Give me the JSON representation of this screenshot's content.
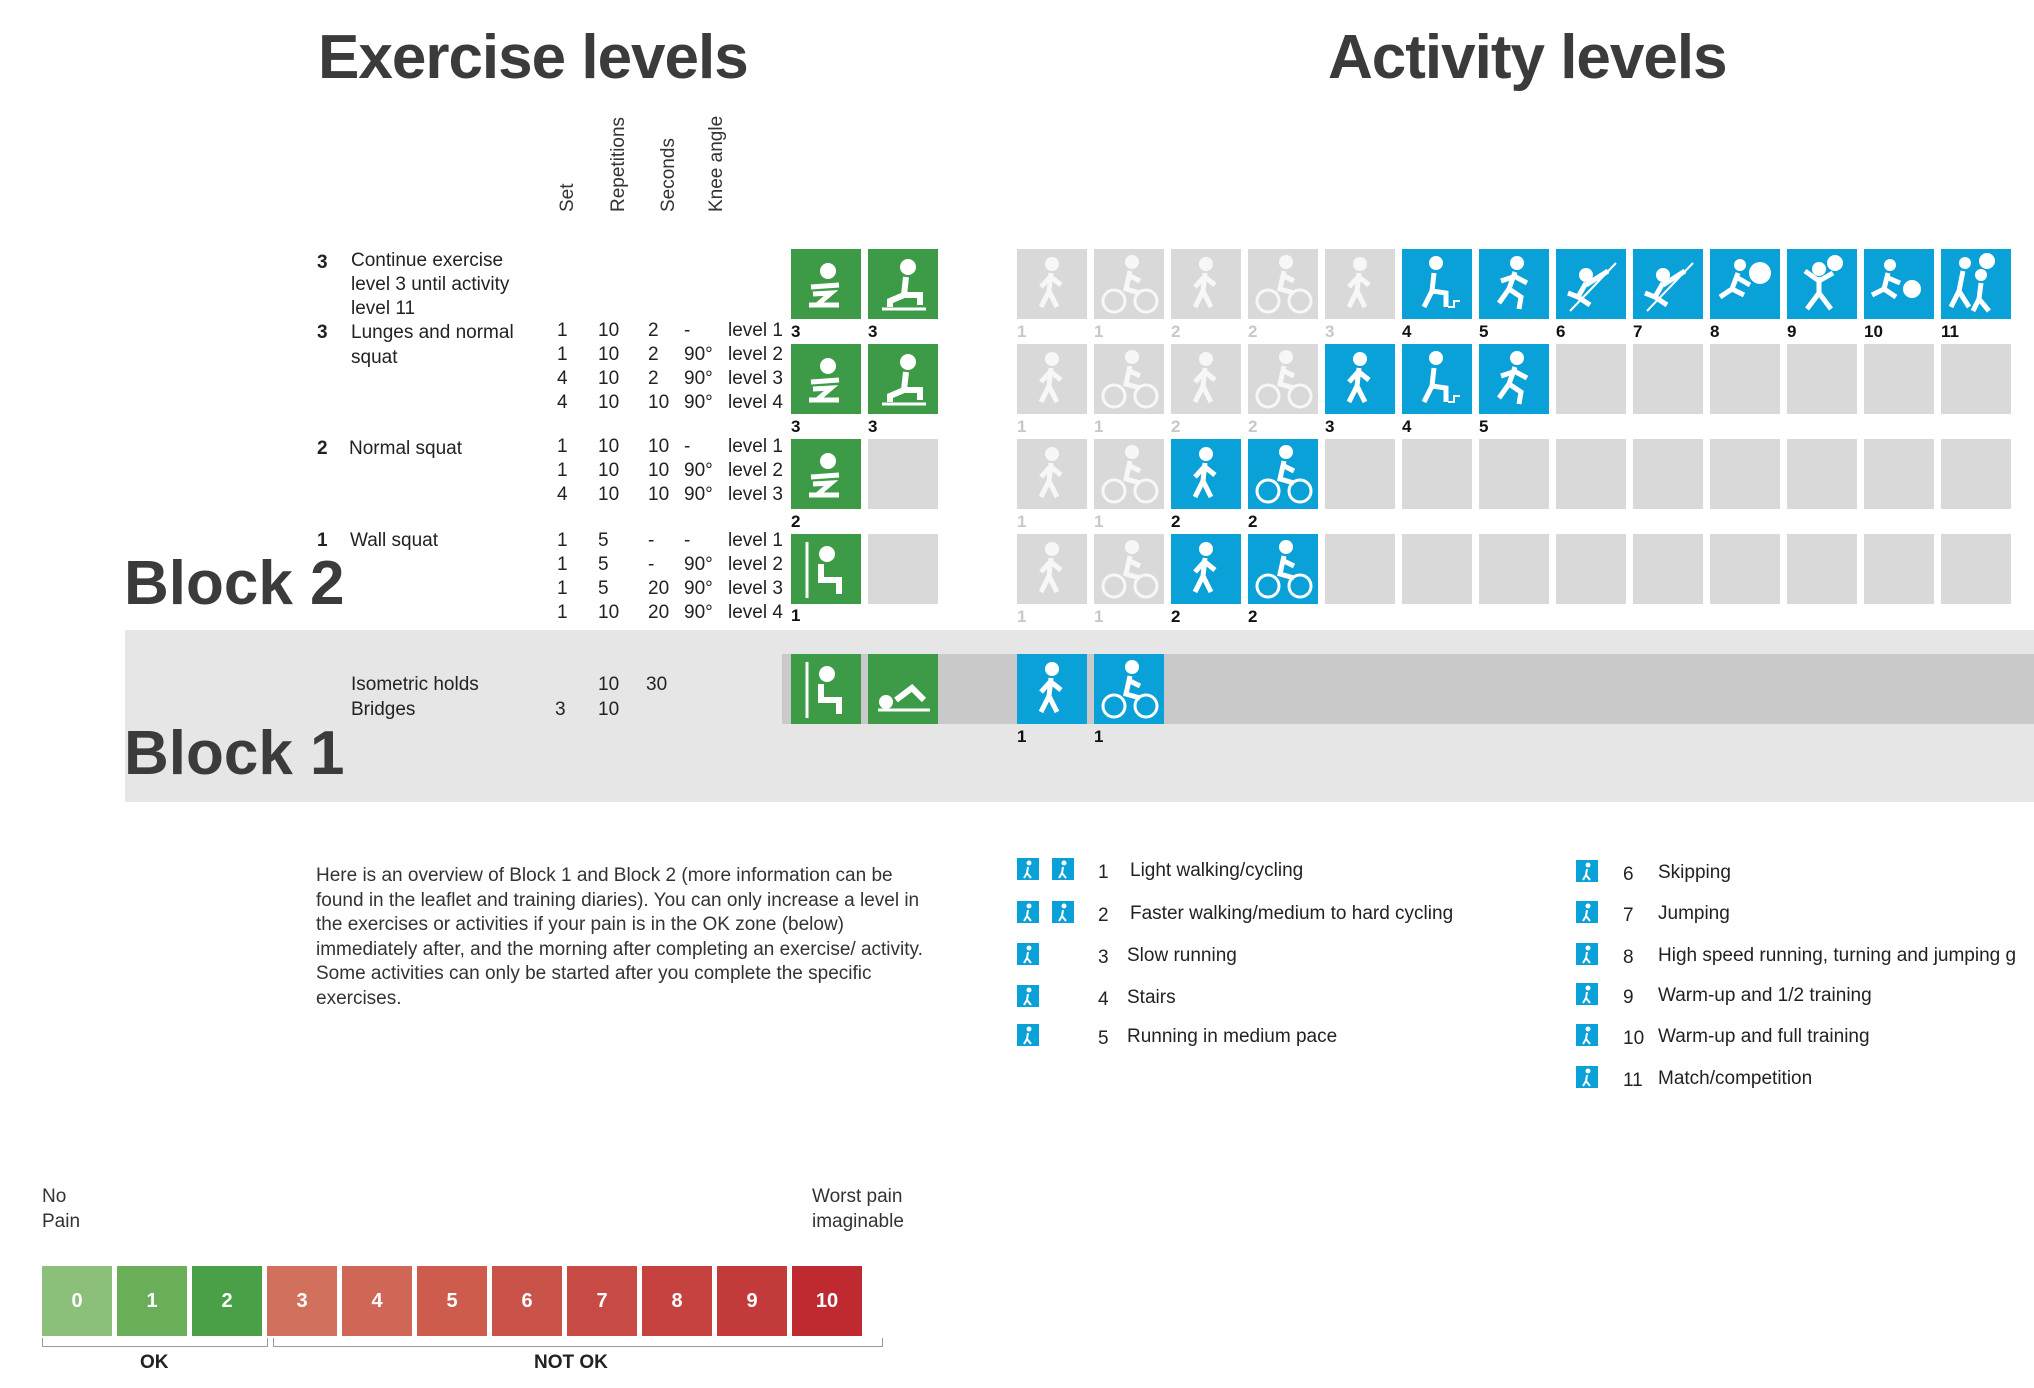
{
  "titles": {
    "exercise": "Exercise levels",
    "activity": "Activity levels",
    "block2": "Block 2",
    "block1": "Block 1"
  },
  "headers": {
    "set": "Set",
    "repetitions": "Repetitions",
    "seconds": "Seconds",
    "knee_angle": "Knee angle"
  },
  "exercises": [
    {
      "level": "3",
      "name": "Continue exercise level 3 until activity level 11"
    },
    {
      "level": "3",
      "name": "Lunges and normal squat",
      "rows": [
        [
          "1",
          "10",
          "2",
          "-",
          "level 1"
        ],
        [
          "1",
          "10",
          "2",
          "90°",
          "level 2"
        ],
        [
          "4",
          "10",
          "2",
          "90°",
          "level 3"
        ],
        [
          "4",
          "10",
          "10",
          "90°",
          "level 4"
        ]
      ]
    },
    {
      "level": "2",
      "name": "Normal squat",
      "rows": [
        [
          "1",
          "10",
          "10",
          "-",
          "level 1"
        ],
        [
          "1",
          "10",
          "10",
          "90°",
          "level 2"
        ],
        [
          "4",
          "10",
          "10",
          "90°",
          "level 3"
        ]
      ]
    },
    {
      "level": "1",
      "name": "Wall squat",
      "rows": [
        [
          "1",
          "5",
          "-",
          "-",
          "level 1"
        ],
        [
          "1",
          "5",
          "-",
          "90°",
          "level 2"
        ],
        [
          "1",
          "5",
          "20",
          "90°",
          "level 3"
        ],
        [
          "1",
          "10",
          "20",
          "90°",
          "level 4"
        ]
      ]
    }
  ],
  "block1_rows": [
    {
      "name": "Isometric holds",
      "set": "",
      "reps": "10",
      "seconds": "30"
    },
    {
      "name": "Bridges",
      "set": "3",
      "reps": "10",
      "seconds": ""
    }
  ],
  "exercise_tile_numbers": {
    "row1": [
      "3",
      "3"
    ],
    "row2": [
      "3",
      "3"
    ],
    "row3": "2",
    "row4": "1"
  },
  "activity_rows": [
    {
      "numbers": [
        "1",
        "1",
        "2",
        "2",
        "3",
        "4",
        "5",
        "6",
        "7",
        "8",
        "9",
        "10",
        "11"
      ],
      "active_from": 5
    },
    {
      "numbers": [
        "1",
        "1",
        "2",
        "2",
        "3",
        "4",
        "5"
      ],
      "active_from": 4
    },
    {
      "numbers": [
        "1",
        "1",
        "2",
        "2"
      ],
      "active_from": 2
    },
    {
      "numbers": [
        "1",
        "1",
        "2",
        "2"
      ],
      "active_from": 2
    },
    {
      "numbers": [
        "1",
        "1"
      ],
      "active_from": 0
    }
  ],
  "description": "Here is an overview of Block 1 and Block 2 (more information can be found in the leaflet and training diaries). You can only increase a level in the exercises or activities if your pain is in the OK zone (below) immediately after, and the morning after completing an exercise/ activity. Some activities can only be started after you complete the specific exercises.",
  "legend": [
    {
      "num": "1",
      "label": "Light walking/cycling",
      "icon": "walk-cycle-icon"
    },
    {
      "num": "2",
      "label": "Faster walking/medium to hard cycling",
      "icon": "walk-cycle-icon"
    },
    {
      "num": "3",
      "label": "Slow running",
      "icon": "slow-run-icon"
    },
    {
      "num": "4",
      "label": "Stairs",
      "icon": "stairs-icon"
    },
    {
      "num": "5",
      "label": "Running in medium pace",
      "icon": "run-icon"
    },
    {
      "num": "6",
      "label": "Skipping",
      "icon": "skipping-icon"
    },
    {
      "num": "7",
      "label": "Jumping",
      "icon": "jumping-icon"
    },
    {
      "num": "8",
      "label": "High speed running, turning and jumping g",
      "icon": "sprint-icon"
    },
    {
      "num": "9",
      "label": "Warm-up and 1/2 training",
      "icon": "training-icon"
    },
    {
      "num": "10",
      "label": "Warm-up and full training",
      "icon": "full-training-icon"
    },
    {
      "num": "11",
      "label": "Match/competition",
      "icon": "match-icon"
    }
  ],
  "pain_scale": {
    "low_label": "No Pain",
    "high_label": "Worst pain imaginable",
    "values": [
      "0",
      "1",
      "2",
      "3",
      "4",
      "5",
      "6",
      "7",
      "8",
      "9",
      "10"
    ],
    "colors": [
      "#8cbf7a",
      "#6aae5a",
      "#4aa047",
      "#d2705e",
      "#d06655",
      "#cd5c4d",
      "#ca5349",
      "#c84a44",
      "#c5423f",
      "#c23a3a",
      "#bf2a30"
    ],
    "ok_label": "OK",
    "not_ok_label": "NOT OK"
  },
  "colors": {
    "green": "#3d9b47",
    "blue": "#0aa0d8",
    "grey_tile": "#d9d9d9",
    "band": "#e6e6e6"
  }
}
